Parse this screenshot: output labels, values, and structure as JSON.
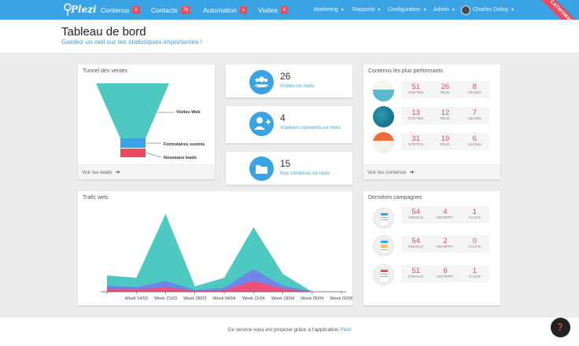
{
  "brand": {
    "name": "Plezi",
    "accent": "#3aa3e3",
    "alert": "#e84a5f"
  },
  "nav": {
    "items": [
      {
        "label": "Contenus",
        "badge": "5"
      },
      {
        "label": "Contacts",
        "badge": "78"
      },
      {
        "label": "Automation",
        "badge": "1"
      },
      {
        "label": "Visites",
        "badge": "0"
      }
    ],
    "right": [
      "Marketing",
      "Rapports",
      "Configuration",
      "Admin"
    ],
    "user": "Charles Dolisy",
    "ribbon": "CATWOMAN"
  },
  "header": {
    "title": "Tableau de bord",
    "subtitle": "Gardez un oeil sur les statistiques importantes !"
  },
  "funnel": {
    "title": "Tunnel des ventes",
    "labels": [
      "Visites Web",
      "Formulaires soumis",
      "Nouveaux leads"
    ],
    "footer": "Voir les leads"
  },
  "stats": [
    {
      "value": "26",
      "label": "Visites ce mois",
      "icon": "users-icon"
    },
    {
      "value": "4",
      "label": "Visiteurs convertis ce mois",
      "icon": "add-user-icon"
    },
    {
      "value": "15",
      "label": "Nvx contenus ce mois",
      "icon": "folder-icon"
    }
  ],
  "top_content": {
    "title": "Contenus les plus performants",
    "columns": [
      "VISITES",
      "TÉLÉ.",
      "LEADS"
    ],
    "rows": [
      {
        "values": [
          "51",
          "26",
          "8"
        ]
      },
      {
        "values": [
          "13",
          "12",
          "7"
        ]
      },
      {
        "values": [
          "31",
          "19",
          "6"
        ]
      }
    ],
    "footer": "Voir les contenus"
  },
  "traffic": {
    "title": "Trafic web"
  },
  "chart_data": {
    "type": "area",
    "title": "Trafic web",
    "x": [
      "",
      "Week 14/03",
      "Week 21/03",
      "Week 28/03",
      "Week 04/04",
      "Week 11/04",
      "Week 18/04",
      "Week 25/04",
      "Week 02/05"
    ],
    "series": [
      {
        "color": "#4ec9c1",
        "values": [
          21,
          18,
          100,
          7,
          18,
          83,
          23,
          0,
          0
        ]
      },
      {
        "color": "#6f86e8",
        "values": [
          8,
          6,
          14,
          2,
          5,
          29,
          8,
          0,
          0
        ]
      },
      {
        "color": "#f0507c",
        "values": [
          4,
          3,
          6,
          1,
          2,
          14,
          4,
          0,
          0
        ]
      }
    ]
  },
  "campaigns": {
    "title": "Dernières campagnes",
    "columns": [
      "EMAILS",
      "OUVERT.",
      "CLICS"
    ],
    "rows": [
      {
        "values": [
          "54",
          "4",
          "1"
        ]
      },
      {
        "values": [
          "54",
          "2",
          "0"
        ]
      },
      {
        "values": [
          "51",
          "6",
          "1"
        ]
      }
    ]
  },
  "footer": {
    "text": "Ce service vous est proposé grâce à l'application",
    "link": "Plezi"
  }
}
